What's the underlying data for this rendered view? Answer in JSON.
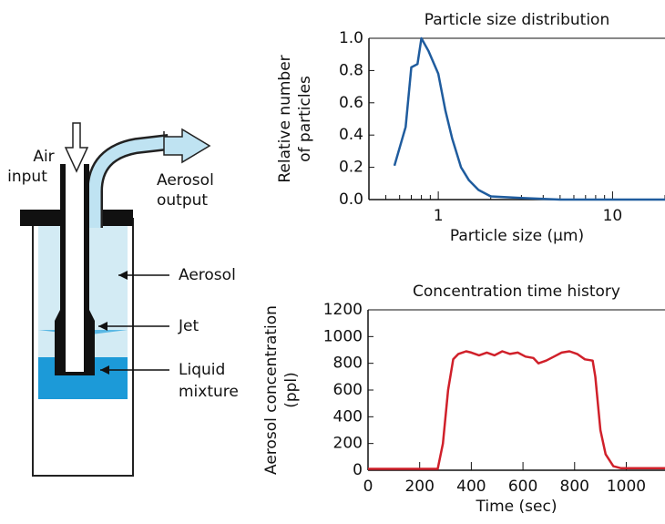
{
  "diagram": {
    "labels": {
      "air_input": [
        "Air",
        "input"
      ],
      "aerosol_output": [
        "Aerosol",
        "output"
      ],
      "aerosol": [
        "Aerosol"
      ],
      "jet": [
        "Jet"
      ],
      "liquid_mixture": [
        "Liquid",
        "mixture"
      ]
    }
  },
  "chart_data": [
    {
      "type": "line",
      "title": "Particle size distribution",
      "xlabel": "Particle size (μm)",
      "ylabel": [
        "Relative number",
        "of particles"
      ],
      "xscale": "log",
      "xlim": [
        0.4,
        20
      ],
      "xticks": [
        1,
        10
      ],
      "xminor_ticks": [
        0.5,
        0.6,
        0.7,
        0.8,
        0.9,
        2,
        3,
        4,
        5,
        6,
        7,
        8,
        9,
        20
      ],
      "ylim": [
        0,
        1.0
      ],
      "yticks": [
        {
          "value": 0,
          "label": "0.0"
        },
        0.2,
        0.4,
        0.6,
        0.8,
        {
          "value": 1,
          "label": "1.0"
        }
      ],
      "color": "#1f5c9e",
      "x": [
        0.56,
        0.65,
        0.7,
        0.76,
        0.8,
        0.88,
        1.0,
        1.1,
        1.2,
        1.35,
        1.5,
        1.7,
        2.0,
        3,
        5,
        20
      ],
      "values": [
        0.21,
        0.45,
        0.82,
        0.84,
        1.0,
        0.92,
        0.78,
        0.55,
        0.38,
        0.2,
        0.12,
        0.06,
        0.02,
        0.01,
        0.0,
        0.0
      ]
    },
    {
      "type": "line",
      "title": "Concentration time history",
      "xlabel": "Time (sec)",
      "ylabel": [
        "Aerosol concentration",
        "(ppl)"
      ],
      "xlim": [
        0,
        1150
      ],
      "xticks": [
        0,
        200,
        400,
        600,
        800,
        1000
      ],
      "ylim": [
        0,
        1200
      ],
      "yticks": [
        0,
        200,
        400,
        600,
        800,
        1000,
        1200
      ],
      "color": "#d0202a",
      "x": [
        0,
        270,
        290,
        310,
        330,
        350,
        380,
        400,
        430,
        460,
        490,
        520,
        550,
        580,
        610,
        640,
        660,
        690,
        720,
        750,
        780,
        810,
        840,
        870,
        880,
        900,
        920,
        950,
        980,
        1150
      ],
      "values": [
        10,
        10,
        200,
        600,
        830,
        870,
        890,
        880,
        860,
        880,
        860,
        890,
        870,
        880,
        850,
        840,
        800,
        820,
        850,
        880,
        890,
        870,
        830,
        820,
        700,
        300,
        120,
        30,
        15,
        15
      ]
    }
  ]
}
